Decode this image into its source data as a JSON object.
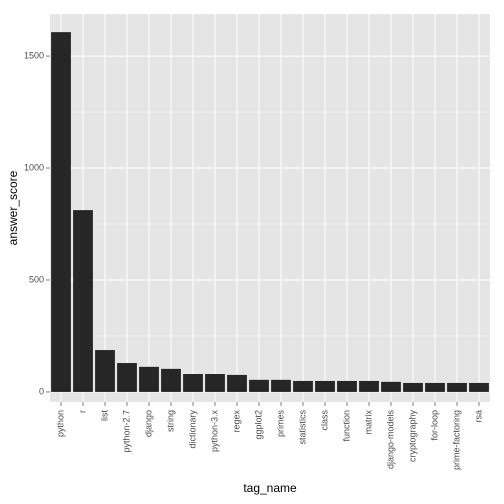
{
  "chart_data": {
    "type": "bar",
    "categories": [
      "python",
      "r",
      "list",
      "python-2.7",
      "django",
      "string",
      "dictionary",
      "python-3.x",
      "regex",
      "ggplot2",
      "primes",
      "statistics",
      "class",
      "function",
      "matrix",
      "django-models",
      "cryptography",
      "for-loop",
      "prime-factoring",
      "rsa"
    ],
    "values": [
      1607,
      812,
      187,
      129,
      112,
      103,
      80,
      80,
      76,
      54,
      54,
      49,
      49,
      49,
      49,
      45,
      40,
      40,
      40,
      40
    ],
    "color": "#262626",
    "x_label": "tag_name",
    "y_label": "answer_score",
    "ylim": [
      -45,
      1688
    ],
    "yticks": [
      0,
      500,
      1000,
      1500
    ],
    "grid": true
  }
}
